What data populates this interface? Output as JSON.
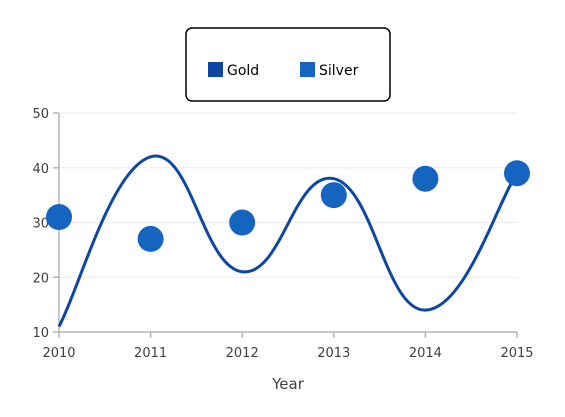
{
  "chart_data": {
    "type": "line+scatter",
    "title": "",
    "xlabel": "Year",
    "ylabel": "",
    "x": [
      2010,
      2011,
      2012,
      2013,
      2014,
      2015
    ],
    "x_tick_labels": [
      "2010",
      "2011",
      "2012",
      "2013",
      "2014",
      "2015"
    ],
    "xlim": [
      2010,
      2015
    ],
    "ylim": [
      10,
      50
    ],
    "y_ticks": [
      10,
      20,
      30,
      40,
      50
    ],
    "y_tick_labels": [
      "10",
      "20",
      "30",
      "40",
      "50"
    ],
    "grid": true,
    "legend_position": "top-center",
    "series": [
      {
        "name": "Gold",
        "type": "spline",
        "color": "#0d47a1",
        "values": [
          11,
          42,
          21,
          38,
          14,
          39
        ]
      },
      {
        "name": "Silver",
        "type": "scatter",
        "color": "#1565c0",
        "values": [
          31,
          27,
          30,
          35,
          38,
          39
        ]
      }
    ]
  }
}
